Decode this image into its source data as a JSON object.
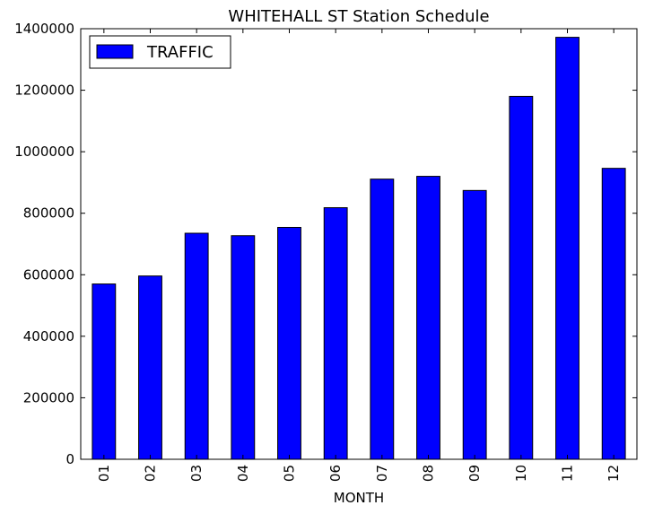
{
  "chart_data": {
    "type": "bar",
    "title": "WHITEHALL ST Station Schedule",
    "xlabel": "MONTH",
    "ylabel": "",
    "categories": [
      "01",
      "02",
      "03",
      "04",
      "05",
      "06",
      "07",
      "08",
      "09",
      "10",
      "11",
      "12"
    ],
    "series": [
      {
        "name": "TRAFFIC",
        "color": "#0000ff",
        "values": [
          570000,
          596000,
          735000,
          727000,
          754000,
          818000,
          911000,
          920000,
          874000,
          1180000,
          1372000,
          946000
        ]
      }
    ],
    "ylim": [
      0,
      1400000
    ],
    "yticks": [
      "0",
      "200000",
      "400000",
      "600000",
      "800000",
      "1000000",
      "1200000",
      "1400000"
    ],
    "grid": false,
    "legend_position": "top-left"
  }
}
